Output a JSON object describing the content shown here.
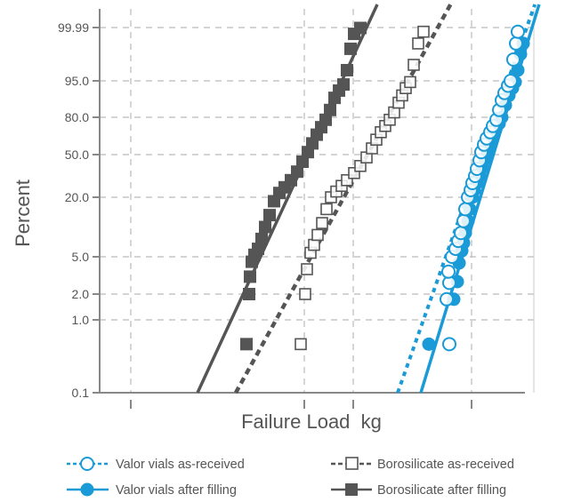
{
  "chart_data": {
    "type": "scatter",
    "title": "",
    "xlabel": "Failure Load  kg",
    "ylabel": "Percent",
    "y_scale": "probability",
    "ylim": [
      0.1,
      99.99
    ],
    "y_ticks": [
      0.1,
      1.0,
      2.0,
      5.0,
      20.0,
      50.0,
      80.0,
      95.0,
      99.99
    ],
    "y_tick_labels": [
      "0.1",
      "1.0",
      "2.0",
      "5.0",
      "20.0",
      "50.0",
      "80.0",
      "95.0",
      "99.99"
    ],
    "grid": true,
    "legend_position": "bottom",
    "colors": {
      "valor": "#1a9ad6",
      "borosilicate": "#555555",
      "grid": "#bbbbbb",
      "axis": "#888888"
    },
    "series": [
      {
        "name": "Valor vials as-received",
        "marker": "open-circle",
        "line": "dotted",
        "fit_line": {
          "low": [
            447,
            0.1
          ],
          "high": [
            592,
            99.99
          ]
        },
        "points": [
          [
            505,
            0.7
          ],
          [
            502,
            1.8
          ],
          [
            505,
            2.9
          ],
          [
            504,
            3.8
          ],
          [
            508,
            5.0
          ],
          [
            512,
            7.0
          ],
          [
            515,
            9.0
          ],
          [
            518,
            11.0
          ],
          [
            521,
            14.0
          ],
          [
            523,
            17.0
          ],
          [
            526,
            20.0
          ],
          [
            529,
            25.0
          ],
          [
            531,
            30.0
          ],
          [
            534,
            35.0
          ],
          [
            536,
            40.0
          ],
          [
            539,
            46.0
          ],
          [
            541,
            52.0
          ],
          [
            544,
            58.0
          ],
          [
            547,
            63.0
          ],
          [
            551,
            68.0
          ],
          [
            554,
            73.0
          ],
          [
            558,
            78.0
          ],
          [
            561,
            83.0
          ],
          [
            564,
            87.0
          ],
          [
            567,
            90.0
          ],
          [
            571,
            93.0
          ],
          [
            574,
            95.0
          ],
          [
            577,
            97.0
          ],
          [
            580,
            98.5
          ],
          [
            582,
            99.6
          ]
        ]
      },
      {
        "name": "Valor vials after filling",
        "marker": "filled-circle",
        "line": "solid",
        "fit_line": {
          "low": [
            473,
            0.1
          ],
          "high": [
            598,
            99.99
          ]
        },
        "points": [
          [
            482,
            0.7
          ],
          [
            510,
            1.8
          ],
          [
            514,
            3.0
          ],
          [
            516,
            4.5
          ],
          [
            519,
            6.5
          ],
          [
            521,
            8.5
          ],
          [
            523,
            11.0
          ],
          [
            526,
            14.0
          ],
          [
            528,
            17.0
          ],
          [
            531,
            20.0
          ],
          [
            533,
            25.0
          ],
          [
            536,
            30.0
          ],
          [
            539,
            35.0
          ],
          [
            542,
            41.0
          ],
          [
            545,
            47.0
          ],
          [
            548,
            53.0
          ],
          [
            551,
            59.0
          ],
          [
            554,
            65.0
          ],
          [
            557,
            70.0
          ],
          [
            561,
            75.0
          ],
          [
            564,
            80.0
          ],
          [
            568,
            85.0
          ],
          [
            572,
            89.0
          ],
          [
            576,
            92.0
          ],
          [
            579,
            94.5
          ],
          [
            582,
            96.0
          ],
          [
            585,
            97.5
          ],
          [
            588,
            98.5
          ]
        ]
      },
      {
        "name": "Borosilicate as-received",
        "marker": "open-square",
        "line": "dashed",
        "fit_line": {
          "low": [
            265,
            0.1
          ],
          "high": [
            492,
            99.99
          ]
        },
        "points": [
          [
            338,
            0.7
          ],
          [
            343,
            2.0
          ],
          [
            345,
            4.0
          ],
          [
            349,
            6.0
          ],
          [
            353,
            8.0
          ],
          [
            357,
            10.5
          ],
          [
            362,
            13.5
          ],
          [
            367,
            17.0
          ],
          [
            372,
            20.0
          ],
          [
            378,
            24.0
          ],
          [
            384,
            28.0
          ],
          [
            390,
            32.0
          ],
          [
            398,
            37.0
          ],
          [
            405,
            42.0
          ],
          [
            412,
            48.0
          ],
          [
            418,
            55.0
          ],
          [
            423,
            62.0
          ],
          [
            428,
            68.0
          ],
          [
            433,
            73.0
          ],
          [
            438,
            78.0
          ],
          [
            443,
            82.0
          ],
          [
            448,
            86.0
          ],
          [
            452,
            89.0
          ],
          [
            456,
            92.0
          ],
          [
            461,
            94.5
          ],
          [
            465,
            96.5
          ],
          [
            470,
            98.5
          ],
          [
            476,
            99.6
          ]
        ]
      },
      {
        "name": "Borosilicate after filling",
        "marker": "filled-square",
        "line": "solid",
        "fit_line": {
          "low": [
            222,
            0.1
          ],
          "high": [
            412,
            99.99
          ]
        },
        "points": [
          [
            277,
            0.7
          ],
          [
            280,
            2.0
          ],
          [
            281,
            3.4
          ],
          [
            283,
            4.6
          ],
          [
            286,
            5.5
          ],
          [
            290,
            7.0
          ],
          [
            294,
            9.5
          ],
          [
            298,
            12.5
          ],
          [
            303,
            15.5
          ],
          [
            308,
            19.0
          ],
          [
            314,
            23.0
          ],
          [
            320,
            27.0
          ],
          [
            327,
            32.0
          ],
          [
            334,
            38.0
          ],
          [
            340,
            45.0
          ],
          [
            346,
            52.0
          ],
          [
            351,
            59.0
          ],
          [
            356,
            66.0
          ],
          [
            361,
            72.0
          ],
          [
            366,
            78.0
          ],
          [
            371,
            83.0
          ],
          [
            376,
            88.0
          ],
          [
            381,
            91.0
          ],
          [
            386,
            93.5
          ],
          [
            390,
            96.0
          ],
          [
            394,
            98.0
          ],
          [
            398,
            99.4
          ],
          [
            405,
            99.95
          ]
        ]
      }
    ]
  }
}
